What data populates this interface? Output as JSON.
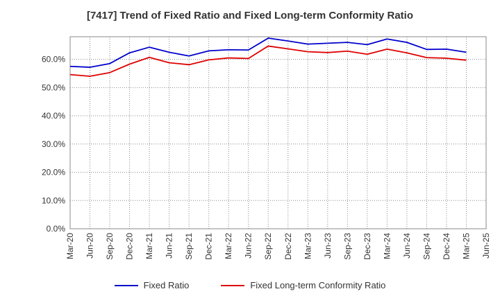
{
  "chart_data": {
    "type": "line",
    "title": "[7417]  Trend of Fixed Ratio and Fixed Long-term Conformity Ratio",
    "xlabel": "",
    "ylabel": "",
    "x": [
      "Mar-20",
      "Jun-20",
      "Sep-20",
      "Dec-20",
      "Mar-21",
      "Jun-21",
      "Sep-21",
      "Dec-21",
      "Mar-22",
      "Jun-22",
      "Sep-22",
      "Dec-22",
      "Mar-23",
      "Jun-23",
      "Sep-23",
      "Dec-23",
      "Mar-24",
      "Jun-24",
      "Sep-24",
      "Dec-24",
      "Mar-25",
      "Jun-25"
    ],
    "ylim": [
      0,
      68
    ],
    "yticks": [
      0,
      10,
      20,
      30,
      40,
      50,
      60
    ],
    "ytick_labels": [
      "0.0%",
      "10.0%",
      "20.0%",
      "30.0%",
      "40.0%",
      "50.0%",
      "60.0%"
    ],
    "grid": true,
    "legend_position": "bottom",
    "series": [
      {
        "name": "Fixed Ratio",
        "color": "#0000cc",
        "values": [
          57.5,
          57.2,
          58.5,
          62.3,
          64.3,
          62.5,
          61.2,
          63.0,
          63.4,
          63.3,
          67.5,
          66.5,
          65.4,
          65.7,
          66.0,
          65.2,
          67.2,
          66.0,
          63.5,
          63.6,
          62.5,
          null
        ]
      },
      {
        "name": "Fixed Long-term Conformity Ratio",
        "color": "#e00000",
        "values": [
          54.6,
          54.0,
          55.3,
          58.3,
          60.7,
          58.8,
          58.1,
          59.8,
          60.5,
          60.3,
          64.7,
          63.7,
          62.7,
          62.4,
          62.9,
          61.8,
          63.6,
          62.3,
          60.6,
          60.4,
          59.7,
          null
        ]
      }
    ]
  }
}
